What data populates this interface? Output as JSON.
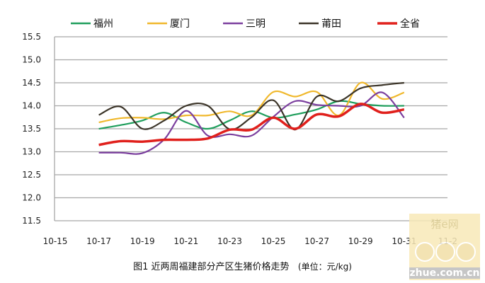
{
  "chart_data": {
    "type": "line",
    "title": "",
    "caption": "图1 近两周福建部分产区生猪价格走势",
    "unit": "(单位：元/kg)",
    "x_ticks": [
      "10-15",
      "10-17",
      "10-19",
      "10-21",
      "10-23",
      "10-25",
      "10-27",
      "10-29",
      "10-31",
      "11-2"
    ],
    "x": [
      "10-17",
      "10-18",
      "10-19",
      "10-20",
      "10-21",
      "10-22",
      "10-23",
      "10-24",
      "10-25",
      "10-26",
      "10-27",
      "10-28",
      "10-29",
      "10-30",
      "10-31"
    ],
    "y_ticks": [
      "15.5",
      "15.0",
      "14.5",
      "14.0",
      "13.5",
      "13.0",
      "12.5",
      "12.0",
      "11.5"
    ],
    "ylim": [
      11.5,
      15.5
    ],
    "grid": true,
    "legend_position": "top",
    "series": [
      {
        "name": "福州",
        "color": "#1f9e5c",
        "values": [
          13.5,
          13.58,
          13.68,
          13.85,
          13.64,
          13.5,
          13.68,
          13.88,
          13.74,
          13.81,
          13.92,
          14.1,
          14.04,
          14.0,
          14.0
        ]
      },
      {
        "name": "厦门",
        "color": "#f0b82c",
        "values": [
          13.64,
          13.73,
          13.74,
          13.71,
          13.79,
          13.79,
          13.88,
          13.79,
          14.3,
          14.2,
          14.3,
          13.79,
          14.5,
          14.15,
          14.29
        ]
      },
      {
        "name": "三明",
        "color": "#7b3f9e",
        "values": [
          12.98,
          12.98,
          12.97,
          13.27,
          13.89,
          13.35,
          13.38,
          13.35,
          13.76,
          14.1,
          14.02,
          14.0,
          14.0,
          14.29,
          13.74
        ]
      },
      {
        "name": "莆田",
        "color": "#3b3428",
        "values": [
          13.8,
          13.98,
          13.5,
          13.68,
          14.0,
          14.0,
          13.49,
          13.75,
          14.12,
          13.48,
          14.2,
          14.1,
          14.38,
          14.45,
          14.5
        ]
      },
      {
        "name": "全省",
        "color": "#e0201c",
        "values": [
          13.15,
          13.23,
          13.22,
          13.26,
          13.26,
          13.29,
          13.48,
          13.48,
          13.74,
          13.5,
          13.81,
          13.77,
          14.04,
          13.85,
          13.92
        ]
      }
    ]
  },
  "watermark": {
    "top": "猪e网",
    "bottom": "zhue.com.cn"
  }
}
